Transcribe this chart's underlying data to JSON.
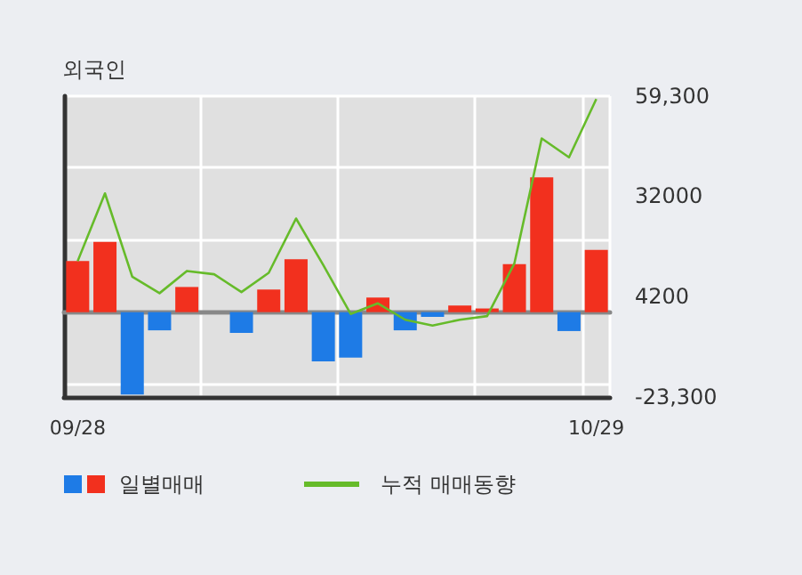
{
  "chart_data": {
    "type": "bar",
    "title": "외국인",
    "categories": [
      "09/28",
      null,
      null,
      null,
      null,
      null,
      null,
      null,
      null,
      null,
      null,
      null,
      null,
      null,
      null,
      null,
      null,
      null,
      null,
      "10/29"
    ],
    "series": [
      {
        "name": "일별매매",
        "values": [
          14000,
          19300,
          -22600,
          -5000,
          6900,
          0,
          -5700,
          6200,
          14500,
          -13500,
          -12500,
          4000,
          -5000,
          -1300,
          1800,
          1000,
          13200,
          37000,
          -5200,
          17100
        ],
        "colors": [
          "#f2301e",
          "#f2301e",
          "#1e7be6",
          "#1e7be6",
          "#f2301e",
          "#f2301e",
          "#1e7be6",
          "#f2301e",
          "#f2301e",
          "#1e7be6",
          "#1e7be6",
          "#f2301e",
          "#1e7be6",
          "#1e7be6",
          "#f2301e",
          "#f2301e",
          "#f2301e",
          "#f2301e",
          "#1e7be6",
          "#f2301e"
        ]
      },
      {
        "name": "누적 매매동향",
        "type": "line",
        "color": "#66bb2a",
        "values": [
          14000,
          32600,
          9700,
          5200,
          11300,
          10400,
          5500,
          10800,
          25700,
          12900,
          -500,
          2400,
          -2100,
          -3700,
          -2100,
          -1100,
          13400,
          47700,
          42500,
          58500
        ]
      }
    ],
    "ylim": [
      -23300,
      59300
    ],
    "yticks": [
      {
        "value": 59300,
        "label": "59,300"
      },
      32000,
      4200,
      {
        "value": -23300,
        "label": "-23,300"
      }
    ],
    "grid": true,
    "legend": "bottom",
    "marker": "none",
    "line_style": "solid"
  }
}
